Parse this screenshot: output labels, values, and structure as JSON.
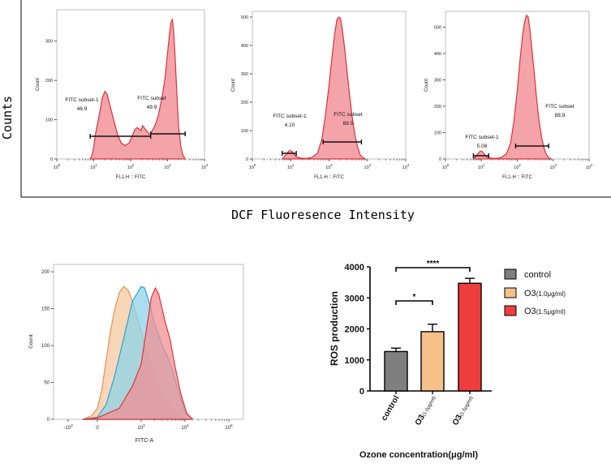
{
  "figure": {
    "left_label": "Counts",
    "bottom_label": "DCF Fluoresence Intensity"
  },
  "chart_data": [
    {
      "type": "area",
      "panel": "histogram-1",
      "ylabel": "Count",
      "xlabel": "FL1-H :: FITC",
      "xscale": "log",
      "xlim": [
        1,
        10000
      ],
      "ylim": [
        0,
        380
      ],
      "yticks": [
        0,
        100,
        200,
        300
      ],
      "xtick_labels": [
        "10^0",
        "10^1",
        "10^2",
        "10^3",
        "10^4"
      ],
      "fill_color": "#f4a3a8",
      "line_color": "#d9333b",
      "x": [
        8,
        9,
        10,
        11,
        13,
        15,
        17,
        20,
        23,
        27,
        32,
        38,
        45,
        55,
        70,
        90,
        110,
        130,
        150,
        170,
        190,
        210,
        240,
        280,
        330,
        400,
        480,
        560,
        650,
        750,
        850,
        950,
        1050,
        1150,
        1250,
        1350,
        1450,
        1600,
        1800,
        2000,
        2300,
        2600,
        3000
      ],
      "y": [
        0,
        10,
        30,
        60,
        95,
        125,
        155,
        172,
        165,
        140,
        112,
        85,
        60,
        42,
        34,
        40,
        58,
        75,
        80,
        76,
        72,
        85,
        78,
        70,
        62,
        75,
        90,
        110,
        140,
        170,
        205,
        250,
        290,
        325,
        350,
        355,
        330,
        260,
        160,
        80,
        30,
        10,
        0
      ],
      "gates": [
        {
          "label": "FITC subset-1",
          "value": "46.9",
          "x_range": [
            8,
            350
          ]
        },
        {
          "label": "FITC subset",
          "value": "49.9",
          "x_range": [
            350,
            3000
          ]
        }
      ]
    },
    {
      "type": "area",
      "panel": "histogram-2",
      "ylabel": "Count",
      "xlabel": "FL1-H :: FITC",
      "xscale": "log",
      "xlim": [
        1,
        10000
      ],
      "ylim": [
        0,
        520
      ],
      "yticks": [
        0,
        100,
        200,
        300,
        400,
        500
      ],
      "xtick_labels": [
        "10^0",
        "10^1",
        "10^2",
        "10^3",
        "10^4"
      ],
      "fill_color": "#f4a3a8",
      "line_color": "#d9333b",
      "x": [
        6,
        7,
        8,
        9,
        10,
        11,
        12,
        14,
        18,
        25,
        35,
        50,
        65,
        80,
        100,
        120,
        140,
        160,
        180,
        200,
        220,
        250,
        290,
        340,
        400,
        480,
        560,
        650,
        760,
        900
      ],
      "y": [
        0,
        10,
        20,
        28,
        30,
        26,
        18,
        8,
        3,
        2,
        5,
        20,
        70,
        150,
        260,
        360,
        440,
        490,
        500,
        495,
        460,
        400,
        320,
        230,
        150,
        80,
        40,
        15,
        5,
        0
      ],
      "gates": [
        {
          "label": "FITC subset-1",
          "value": "4.10",
          "x_range": [
            6,
            14
          ]
        },
        {
          "label": "FITC subset",
          "value": "89.5",
          "x_range": [
            70,
            700
          ]
        }
      ]
    },
    {
      "type": "area",
      "panel": "histogram-3",
      "ylabel": "Count",
      "xlabel": "FL1-H :: FITC",
      "xscale": "log",
      "xlim": [
        1,
        10000
      ],
      "ylim": [
        0,
        560
      ],
      "yticks": [
        0,
        100,
        200,
        300,
        400,
        500
      ],
      "xtick_labels": [
        "10^0",
        "10^1",
        "10^2",
        "10^3",
        "10^4"
      ],
      "fill_color": "#f4a3a8",
      "line_color": "#d9333b",
      "x": [
        6,
        7,
        8,
        9,
        10,
        11,
        12,
        14,
        18,
        25,
        35,
        50,
        65,
        80,
        100,
        120,
        140,
        160,
        180,
        200,
        220,
        250,
        290,
        340,
        400,
        480,
        560,
        650,
        760,
        900
      ],
      "y": [
        0,
        10,
        20,
        28,
        30,
        26,
        18,
        8,
        3,
        2,
        5,
        20,
        60,
        140,
        260,
        380,
        470,
        520,
        545,
        540,
        500,
        430,
        340,
        240,
        150,
        80,
        40,
        15,
        5,
        0
      ],
      "gates": [
        {
          "label": "FITC subset-1",
          "value": "5.08",
          "x_range": [
            6,
            16
          ]
        },
        {
          "label": "FITC subset",
          "value": "88.9",
          "x_range": [
            90,
            750
          ]
        }
      ]
    },
    {
      "type": "area",
      "panel": "overlay",
      "ylabel": "Count",
      "xlabel": "FITC-A",
      "xlim": [
        -2000,
        100000
      ],
      "ylim": [
        0,
        210
      ],
      "yticks": [
        0,
        50,
        100,
        150,
        200
      ],
      "xtick_labels": [
        "-10^3",
        "0",
        "10^3",
        "10^4",
        "10^5"
      ],
      "series": [
        {
          "color_fill": "#f5c8a0",
          "color_line": "#e89050",
          "x": [
            -500,
            -200,
            0,
            100,
            200,
            300,
            400,
            500,
            600,
            700,
            800,
            900,
            1000,
            1200,
            1500,
            2000,
            3000,
            5000,
            8000,
            12000
          ],
          "y": [
            0,
            5,
            15,
            40,
            80,
            120,
            150,
            172,
            180,
            175,
            160,
            140,
            120,
            100,
            80,
            60,
            35,
            15,
            4,
            0
          ]
        },
        {
          "color_fill": "#8ed3e8",
          "color_line": "#2aa6d0",
          "x": [
            -500,
            0,
            200,
            400,
            600,
            800,
            1000,
            1200,
            1500,
            2000,
            2500,
            3000,
            4000,
            5000,
            7000,
            10000,
            14000
          ],
          "y": [
            0,
            3,
            20,
            60,
            110,
            160,
            180,
            178,
            160,
            130,
            115,
            100,
            85,
            70,
            40,
            10,
            0
          ]
        },
        {
          "color_fill": "#f08f93",
          "color_line": "#e0353c",
          "x": [
            -500,
            0,
            500,
            800,
            1000,
            1300,
            1700,
            2100,
            2500,
            3000,
            3600,
            4500,
            6000,
            8000,
            11000,
            15000
          ],
          "y": [
            0,
            2,
            15,
            45,
            75,
            120,
            165,
            178,
            170,
            150,
            130,
            110,
            70,
            35,
            8,
            0
          ]
        }
      ]
    },
    {
      "type": "bar",
      "panel": "bar-chart",
      "ylabel": "ROS production",
      "xlabel": "Ozone concentration(μg/ml)",
      "ylim": [
        0,
        4000
      ],
      "yticks": [
        0,
        1000,
        2000,
        3000,
        4000
      ],
      "categories": [
        "control",
        "O3",
        "O3"
      ],
      "category_subscripts": [
        "",
        "(1.0μg/ml)",
        "(1.5μg/ml)"
      ],
      "values": [
        1270,
        1910,
        3470
      ],
      "errors": [
        110,
        240,
        160
      ],
      "colors": [
        "#7f7f7f",
        "#f5c08a",
        "#ef3d3d"
      ],
      "legend": [
        {
          "label": "control",
          "color": "#7f7f7f"
        },
        {
          "label": "O3",
          "sub": "(1.0μg/ml)",
          "color": "#f5c08a"
        },
        {
          "label": "O3",
          "sub": "(1.5μg/ml)",
          "color": "#ef3d3d"
        }
      ],
      "significance": [
        {
          "from": 0,
          "to": 1,
          "label": "*"
        },
        {
          "from": 0,
          "to": 2,
          "label": "****"
        }
      ]
    }
  ]
}
